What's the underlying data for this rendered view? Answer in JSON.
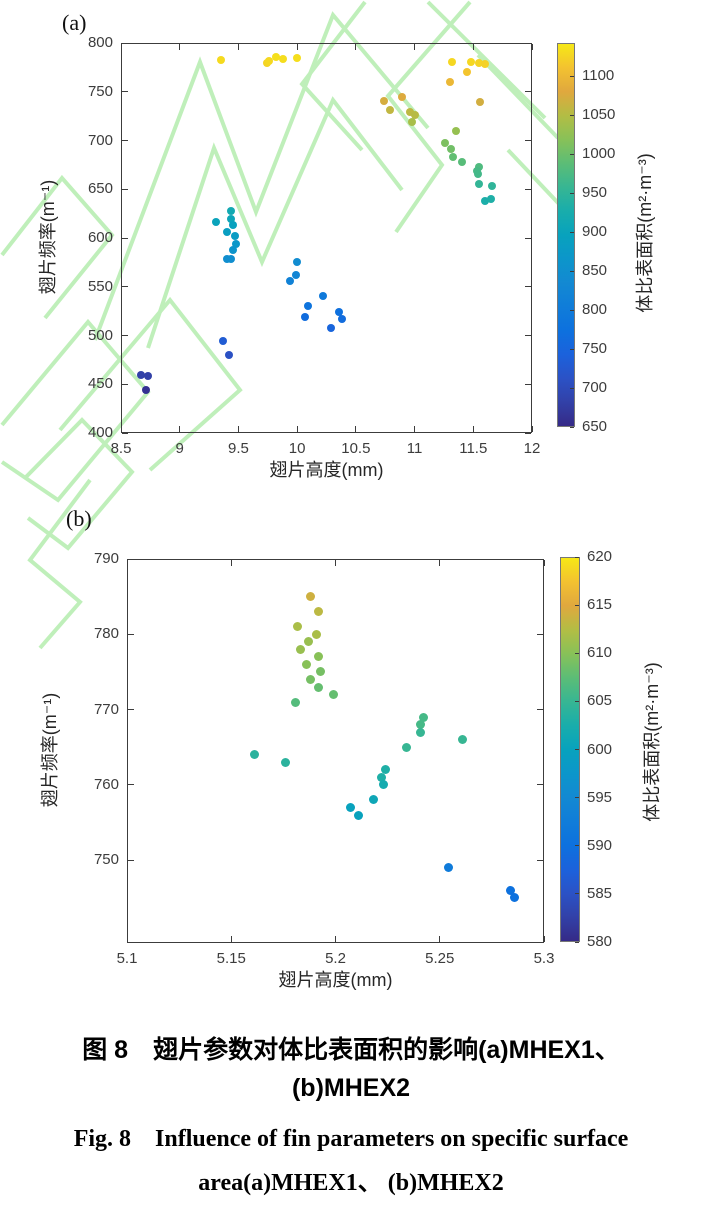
{
  "watermark_color": "#b5edae",
  "axis_color": "#3c3c3c",
  "colormap": [
    "#352a87",
    "#3241a8",
    "#2b52c6",
    "#1b62dc",
    "#0d71de",
    "#107dd9",
    "#1389d2",
    "#0c96ca",
    "#08a2bd",
    "#19adab",
    "#37b693",
    "#5cbd76",
    "#88c158",
    "#b3bd44",
    "#e0a83e",
    "#f3c230",
    "#f6e816"
  ],
  "caption": {
    "line1_zh": "图 8　翅片参数对体比表面积的影响(a)MHEX1、",
    "line2_zh": "(b)MHEX2",
    "line3_en": "Fig. 8　Influence of fin parameters on specific surface",
    "line4_en": "area(a)MHEX1、 (b)MHEX2"
  },
  "chart_data": [
    {
      "type": "scatter",
      "panel_label": "(a)",
      "xlabel": "翅片高度(mm)",
      "ylabel": "翅片频率(m⁻¹)",
      "colorbar_label": "体比表面积(m²·m⁻³)",
      "xlim": [
        8.5,
        12
      ],
      "ylim": [
        400,
        800
      ],
      "xticks": [
        8.5,
        9,
        9.5,
        10,
        10.5,
        11,
        11.5,
        12
      ],
      "yticks": [
        400,
        450,
        500,
        550,
        600,
        650,
        700,
        750,
        800
      ],
      "grid": false,
      "colorbar": {
        "min": 650,
        "max": 1143,
        "ticks": [
          650,
          700,
          750,
          800,
          850,
          900,
          950,
          1000,
          1050,
          1100
        ]
      },
      "points": [
        [
          9.35,
          783,
          1132
        ],
        [
          9.74,
          779,
          1127
        ],
        [
          9.76,
          782,
          1130
        ],
        [
          9.82,
          786,
          1136
        ],
        [
          9.88,
          784,
          1134
        ],
        [
          10.0,
          785,
          1135
        ],
        [
          11.32,
          781,
          1129
        ],
        [
          11.48,
          781,
          1129
        ],
        [
          11.55,
          779,
          1127
        ],
        [
          11.6,
          778,
          1125
        ],
        [
          11.45,
          770,
          1114
        ],
        [
          11.3,
          760,
          1100
        ],
        [
          11.56,
          740,
          1072
        ],
        [
          10.74,
          741,
          1074
        ],
        [
          10.89,
          745,
          1079
        ],
        [
          10.79,
          731,
          1060
        ],
        [
          10.96,
          729,
          1057
        ],
        [
          11.0,
          726,
          1053
        ],
        [
          10.98,
          719,
          1043
        ],
        [
          11.35,
          710,
          1030
        ],
        [
          11.26,
          697,
          1012
        ],
        [
          11.31,
          691,
          1004
        ],
        [
          11.33,
          683,
          993
        ],
        [
          11.4,
          678,
          986
        ],
        [
          11.55,
          673,
          979
        ],
        [
          11.53,
          669,
          973
        ],
        [
          11.54,
          666,
          969
        ],
        [
          11.55,
          655,
          954
        ],
        [
          11.66,
          653,
          951
        ],
        [
          11.6,
          638,
          930
        ],
        [
          11.65,
          640,
          933
        ],
        [
          9.44,
          628,
          916
        ],
        [
          9.31,
          616,
          900
        ],
        [
          9.44,
          620,
          905
        ],
        [
          9.45,
          613,
          895
        ],
        [
          9.4,
          606,
          886
        ],
        [
          9.47,
          602,
          880
        ],
        [
          9.48,
          594,
          869
        ],
        [
          9.45,
          588,
          861
        ],
        [
          9.4,
          578,
          847
        ],
        [
          9.44,
          578,
          847
        ],
        [
          10.0,
          575,
          842
        ],
        [
          9.99,
          562,
          824
        ],
        [
          9.94,
          556,
          816
        ],
        [
          10.22,
          541,
          795
        ],
        [
          10.09,
          530,
          780
        ],
        [
          10.07,
          519,
          764
        ],
        [
          10.36,
          524,
          771
        ],
        [
          10.38,
          517,
          762
        ],
        [
          10.29,
          508,
          749
        ],
        [
          9.37,
          494,
          730
        ],
        [
          9.42,
          480,
          710
        ],
        [
          8.67,
          459,
          681
        ],
        [
          8.73,
          458,
          680
        ],
        [
          8.71,
          444,
          660
        ]
      ]
    },
    {
      "type": "scatter",
      "panel_label": "(b)",
      "xlabel": "翅片高度(mm)",
      "ylabel": "翅片频率(m⁻¹)",
      "colorbar_label": "体比表面积(m²·m⁻³)",
      "xlim": [
        5.1,
        5.3
      ],
      "ylim": [
        739,
        790
      ],
      "xticks": [
        5.1,
        5.15,
        5.2,
        5.25,
        5.3
      ],
      "yticks": [
        750,
        760,
        770,
        780,
        790
      ],
      "grid": false,
      "colorbar": {
        "min": 580,
        "max": 620,
        "ticks": [
          580,
          585,
          590,
          595,
          600,
          605,
          610,
          615,
          620
        ]
      },
      "points": [
        [
          5.188,
          785,
          614
        ],
        [
          5.192,
          783,
          613
        ],
        [
          5.182,
          781,
          612
        ],
        [
          5.191,
          780,
          612
        ],
        [
          5.187,
          779,
          611
        ],
        [
          5.183,
          778,
          611
        ],
        [
          5.192,
          777,
          610
        ],
        [
          5.186,
          776,
          610
        ],
        [
          5.193,
          775,
          609
        ],
        [
          5.188,
          774,
          609
        ],
        [
          5.192,
          773,
          608
        ],
        [
          5.199,
          772,
          608
        ],
        [
          5.181,
          771,
          607
        ],
        [
          5.242,
          769,
          606
        ],
        [
          5.241,
          768,
          606
        ],
        [
          5.241,
          767,
          605
        ],
        [
          5.261,
          766,
          605
        ],
        [
          5.234,
          765,
          605
        ],
        [
          5.161,
          764,
          604
        ],
        [
          5.176,
          763,
          604
        ],
        [
          5.224,
          762,
          603
        ],
        [
          5.222,
          761,
          603
        ],
        [
          5.223,
          760,
          602
        ],
        [
          5.218,
          758,
          601
        ],
        [
          5.207,
          757,
          600
        ],
        [
          5.211,
          756,
          600
        ],
        [
          5.254,
          749,
          592
        ],
        [
          5.284,
          746,
          590
        ],
        [
          5.286,
          745,
          590
        ]
      ]
    }
  ]
}
